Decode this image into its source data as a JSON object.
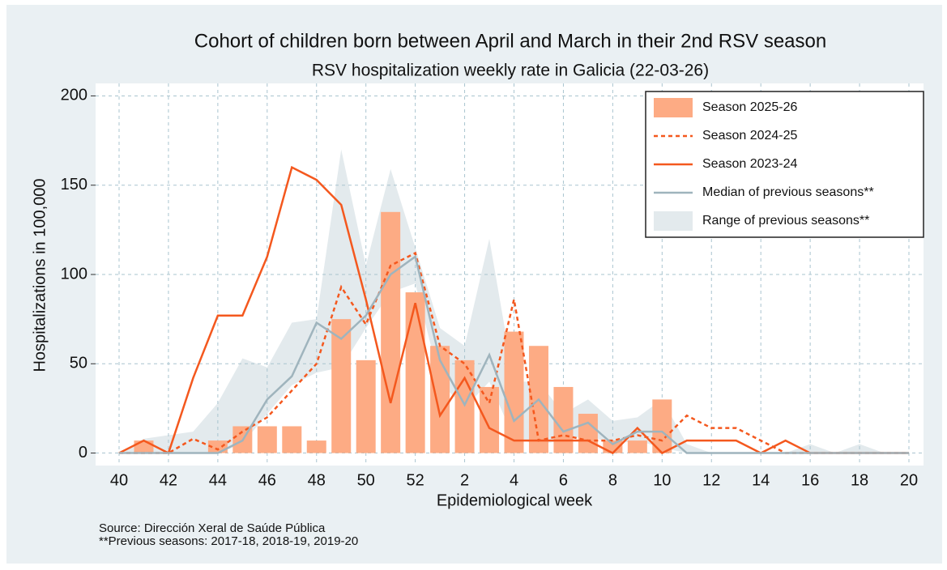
{
  "chart_data": {
    "type": "bar",
    "title": "Cohort of children born between April and March in their 2nd RSV season",
    "subtitle": "RSV hospitalization weekly rate in Galicia (22-03-26)",
    "y_label": "Hospitalizations in 100,000",
    "x_label": "Epidemiological week",
    "notes": [
      "Source: Dirección Xeral de Saúde Pública",
      "**Previous seasons: 2017-18, 2018-19, 2019-20"
    ],
    "categories": [
      "40",
      null,
      "42",
      null,
      "44",
      null,
      "46",
      null,
      "48",
      null,
      "50",
      null,
      "52",
      null,
      "2",
      null,
      "4",
      null,
      "6",
      null,
      "8",
      null,
      "10",
      null,
      "12",
      null,
      "14",
      null,
      "16",
      null,
      "18",
      null,
      "20"
    ],
    "ylim": [
      -7,
      207
    ],
    "yticks": [
      0,
      50,
      100,
      150,
      200
    ],
    "grid": true,
    "legend": "upper right",
    "series": [
      {
        "name": "Season 2025-26",
        "type": "bar",
        "color": "#fdab84",
        "values": [
          0,
          7,
          0,
          0,
          7,
          15,
          15,
          15,
          7,
          75,
          52,
          135,
          90,
          60,
          52,
          37,
          68,
          60,
          37,
          22,
          7,
          7,
          30,
          null,
          null,
          null,
          null,
          null,
          null,
          null,
          null,
          null,
          null
        ]
      },
      {
        "name": "Season 2024-25",
        "type": "line",
        "dash": "dotted",
        "color": "#f4581e",
        "values": [
          0,
          0,
          0,
          8,
          2,
          12,
          20,
          35,
          50,
          93,
          72,
          105,
          112,
          60,
          50,
          28,
          86,
          7,
          10,
          7,
          7,
          10,
          7,
          21,
          14,
          14,
          7,
          0,
          0,
          0,
          0,
          0,
          0
        ]
      },
      {
        "name": "Season 2023-24",
        "type": "line",
        "dash": "solid",
        "color": "#f4581e",
        "values": [
          0,
          7,
          0,
          42,
          77,
          77,
          110,
          160,
          153,
          139,
          86,
          28,
          84,
          21,
          42,
          14,
          7,
          7,
          7,
          7,
          0,
          14,
          0,
          7,
          7,
          7,
          0,
          7,
          0,
          0,
          0,
          0,
          0
        ]
      },
      {
        "name": "Median of previous seasons**",
        "type": "line",
        "dash": "solid",
        "color": "#9fb4bd",
        "values": [
          0,
          0,
          0,
          0,
          0,
          7,
          30,
          43,
          73,
          64,
          77,
          100,
          110,
          52,
          27,
          55,
          18,
          30,
          12,
          17,
          5,
          12,
          12,
          0,
          0,
          0,
          0,
          0,
          0,
          0,
          0,
          0,
          0
        ]
      },
      {
        "name": "Range of previous seasons**",
        "type": "area",
        "color": "#e3eaed",
        "low": [
          0,
          0,
          0,
          0,
          0,
          5,
          22,
          38,
          45,
          48,
          70,
          90,
          95,
          40,
          25,
          40,
          8,
          5,
          7,
          10,
          5,
          7,
          3,
          0,
          0,
          0,
          0,
          0,
          0,
          0,
          0,
          0,
          0
        ],
        "high": [
          0,
          8,
          10,
          12,
          28,
          53,
          48,
          73,
          75,
          170,
          105,
          159,
          115,
          70,
          60,
          120,
          40,
          40,
          22,
          30,
          18,
          20,
          30,
          5,
          0,
          0,
          0,
          0,
          5,
          0,
          5,
          0,
          0
        ]
      }
    ]
  }
}
